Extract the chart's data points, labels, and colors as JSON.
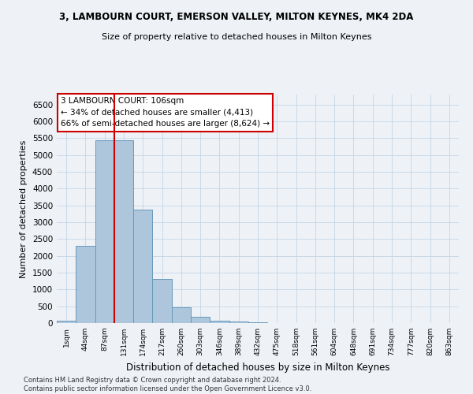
{
  "title": "3, LAMBOURN COURT, EMERSON VALLEY, MILTON KEYNES, MK4 2DA",
  "subtitle": "Size of property relative to detached houses in Milton Keynes",
  "xlabel": "Distribution of detached houses by size in Milton Keynes",
  "ylabel": "Number of detached properties",
  "bin_labels": [
    "1sqm",
    "44sqm",
    "87sqm",
    "131sqm",
    "174sqm",
    "217sqm",
    "260sqm",
    "303sqm",
    "346sqm",
    "389sqm",
    "432sqm",
    "475sqm",
    "518sqm",
    "561sqm",
    "604sqm",
    "648sqm",
    "691sqm",
    "734sqm",
    "777sqm",
    "820sqm",
    "863sqm"
  ],
  "bar_values": [
    70,
    2300,
    5430,
    5430,
    3380,
    1310,
    480,
    185,
    80,
    55,
    30,
    0,
    0,
    0,
    0,
    0,
    0,
    0,
    0,
    0,
    0
  ],
  "bar_color": "#aec6dc",
  "bar_edge_color": "#6699bb",
  "property_line_bin_index": 2,
  "property_line_color": "#cc0000",
  "annotation_title": "3 LAMBOURN COURT: 106sqm",
  "annotation_line1": "← 34% of detached houses are smaller (4,413)",
  "annotation_line2": "66% of semi-detached houses are larger (8,624) →",
  "annotation_box_color": "#ffffff",
  "annotation_box_edge": "#cc0000",
  "ylim": [
    0,
    6800
  ],
  "yticks": [
    0,
    500,
    1000,
    1500,
    2000,
    2500,
    3000,
    3500,
    4000,
    4500,
    5000,
    5500,
    6000,
    6500
  ],
  "footer_line1": "Contains HM Land Registry data © Crown copyright and database right 2024.",
  "footer_line2": "Contains public sector information licensed under the Open Government Licence v3.0.",
  "background_color": "#eef2f7",
  "grid_color": "#c5d5e5"
}
